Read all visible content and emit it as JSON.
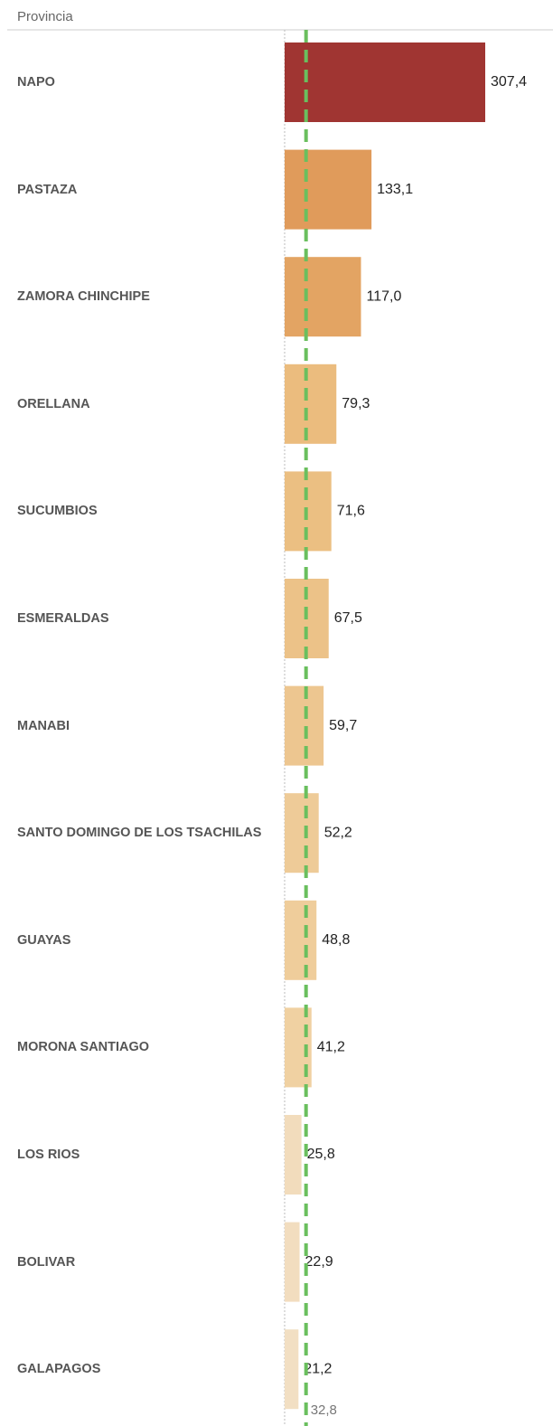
{
  "chart_data": {
    "type": "bar",
    "orientation": "horizontal",
    "row_header": "Provincia",
    "categories": [
      "NAPO",
      "PASTAZA",
      "ZAMORA CHINCHIPE",
      "ORELLANA",
      "SUCUMBIOS",
      "ESMERALDAS",
      "MANABI",
      "SANTO DOMINGO DE LOS TSACHILAS",
      "GUAYAS",
      "MORONA SANTIAGO",
      "LOS RIOS",
      "BOLIVAR",
      "GALAPAGOS"
    ],
    "values": [
      307.4,
      133.1,
      117.0,
      79.3,
      71.6,
      67.5,
      59.7,
      52.2,
      48.8,
      41.2,
      25.8,
      22.9,
      21.2
    ],
    "value_labels": [
      "307,4",
      "133,1",
      "117,0",
      "79,3",
      "71,6",
      "67,5",
      "59,7",
      "52,2",
      "48,8",
      "41,2",
      "25,8",
      "22,9",
      "21,2"
    ],
    "colors": [
      "#a03532",
      "#e09b5b",
      "#e3a463",
      "#ebbc7e",
      "#ebbf82",
      "#ecc288",
      "#edc690",
      "#eecb98",
      "#efcd9b",
      "#f0d1a2",
      "#f2dcbc",
      "#f2ddbf",
      "#f2dfc3"
    ],
    "reference_line": {
      "value": 32.8,
      "label": "32,8",
      "color": "#6abf5e"
    }
  }
}
